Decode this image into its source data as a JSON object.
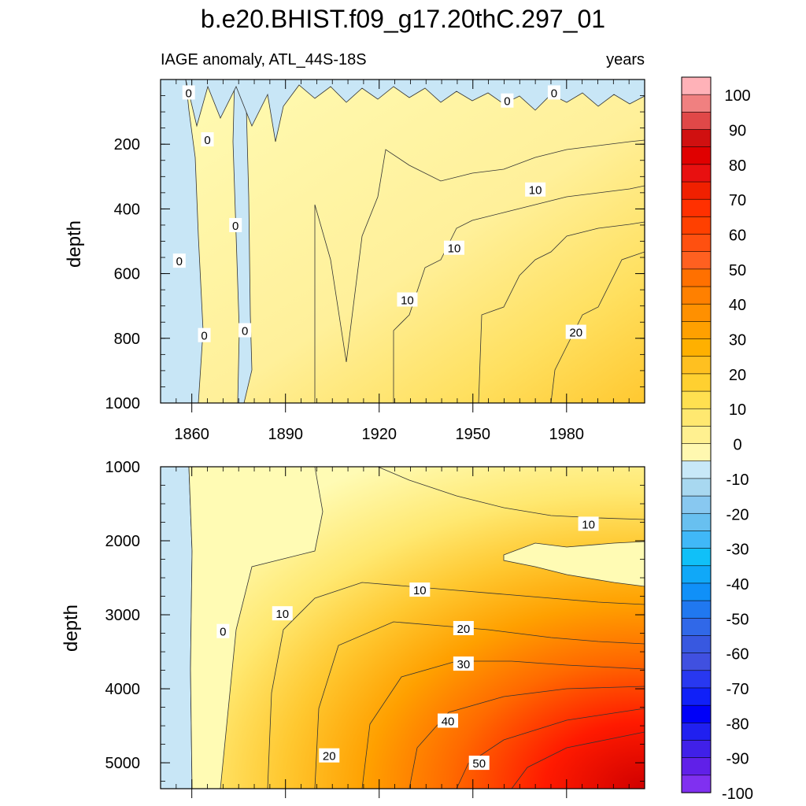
{
  "chart_data": {
    "type": "contour",
    "title": "b.e20.BHIST.f09_g17.20thC.297_01",
    "subtitle_left": "IAGE anomaly, ATL_44S-18S",
    "subtitle_right": "years",
    "ylabel": "depth",
    "x_ticks": [
      1860,
      1890,
      1920,
      1950,
      1980
    ],
    "xlim": [
      1850,
      2005
    ],
    "upper_panel": {
      "ylim": [
        0,
        1000
      ],
      "y_ticks": [
        200,
        400,
        600,
        800,
        1000
      ],
      "y_tick_labels": [
        "200",
        "400",
        "600",
        "800",
        "1000"
      ],
      "contour_labels": [
        {
          "text": "0",
          "x": 1859,
          "y": 40
        },
        {
          "text": "0",
          "x": 1865,
          "y": 185
        },
        {
          "text": "0",
          "x": 1864,
          "y": 790
        },
        {
          "text": "0",
          "x": 1856,
          "y": 560
        },
        {
          "text": "0",
          "x": 1874,
          "y": 450
        },
        {
          "text": "0",
          "x": 1877,
          "y": 775
        },
        {
          "text": "0",
          "x": 1961,
          "y": 65
        },
        {
          "text": "0",
          "x": 1976,
          "y": 40
        },
        {
          "text": "10",
          "x": 1970,
          "y": 340
        },
        {
          "text": "10",
          "x": 1944,
          "y": 520
        },
        {
          "text": "10",
          "x": 1929,
          "y": 680
        },
        {
          "text": "20",
          "x": 1983,
          "y": 780
        }
      ]
    },
    "lower_panel": {
      "ylim": [
        1000,
        5350
      ],
      "y_ticks": [
        1000,
        2000,
        3000,
        4000,
        5000
      ],
      "y_tick_labels": [
        "1000",
        "2000",
        "3000",
        "4000",
        "5000"
      ],
      "contour_labels": [
        {
          "text": "10",
          "x": 1987,
          "y": 1770
        },
        {
          "text": "10",
          "x": 1933,
          "y": 2660
        },
        {
          "text": "10",
          "x": 1889,
          "y": 2980
        },
        {
          "text": "0",
          "x": 1870,
          "y": 3220
        },
        {
          "text": "20",
          "x": 1947,
          "y": 3180
        },
        {
          "text": "30",
          "x": 1947,
          "y": 3660
        },
        {
          "text": "40",
          "x": 1942,
          "y": 4430
        },
        {
          "text": "50",
          "x": 1952,
          "y": 5000
        },
        {
          "text": "20",
          "x": 1904,
          "y": 4900
        }
      ]
    },
    "colorbar": {
      "labels": [
        "100",
        "90",
        "80",
        "70",
        "60",
        "50",
        "40",
        "30",
        "20",
        "10",
        "0",
        "-10",
        "-20",
        "-30",
        "-40",
        "-50",
        "-60",
        "-70",
        "-80",
        "-90",
        "-100"
      ],
      "colors_top_to_bottom": [
        "#ffb2b8",
        "#f08080",
        "#e04848",
        "#d01010",
        "#e00000",
        "#e81010",
        "#f02000",
        "#ff3000",
        "#ff4000",
        "#ff5010",
        "#ff6020",
        "#ff7000",
        "#ff8000",
        "#ff9000",
        "#ffa000",
        "#ffb000",
        "#ffc020",
        "#ffd030",
        "#ffe050",
        "#ffe870",
        "#fff090",
        "#fff8b0",
        "#c8e8f8",
        "#a8d8f0",
        "#88c8f0",
        "#68c0f0",
        "#40b8f8",
        "#10c0f8",
        "#10a8f8",
        "#1090f8",
        "#2078f0",
        "#3068e8",
        "#3858e0",
        "#4050e0",
        "#2838f0",
        "#1020f8",
        "#0000f8",
        "#2020f0",
        "#4020e8",
        "#6020e8",
        "#8030f0"
      ]
    }
  }
}
